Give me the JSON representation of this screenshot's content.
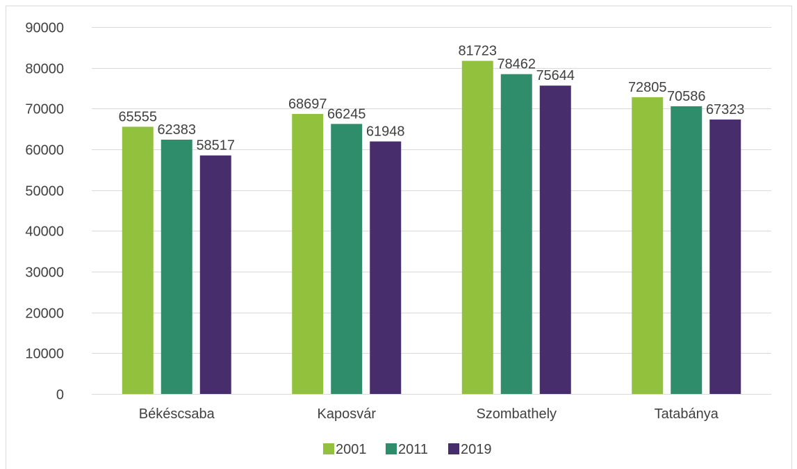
{
  "chart_data": {
    "type": "bar",
    "categories": [
      "Békéscsaba",
      "Kaposvár",
      "Szombathely",
      "Tatabánya"
    ],
    "series": [
      {
        "name": "2001",
        "color": "#92c13e",
        "values": [
          65555,
          68697,
          81723,
          72805
        ]
      },
      {
        "name": "2011",
        "color": "#2f8d6b",
        "values": [
          62383,
          66245,
          78462,
          70586
        ]
      },
      {
        "name": "2019",
        "color": "#472d6b",
        "values": [
          58517,
          61948,
          75644,
          67323
        ]
      }
    ],
    "yticks": [
      0,
      10000,
      20000,
      30000,
      40000,
      50000,
      60000,
      70000,
      80000,
      90000
    ],
    "ylim": [
      0,
      90000
    ],
    "grid": true,
    "legend_position": "bottom",
    "data_labels": true,
    "title": "",
    "xlabel": "",
    "ylabel": ""
  }
}
